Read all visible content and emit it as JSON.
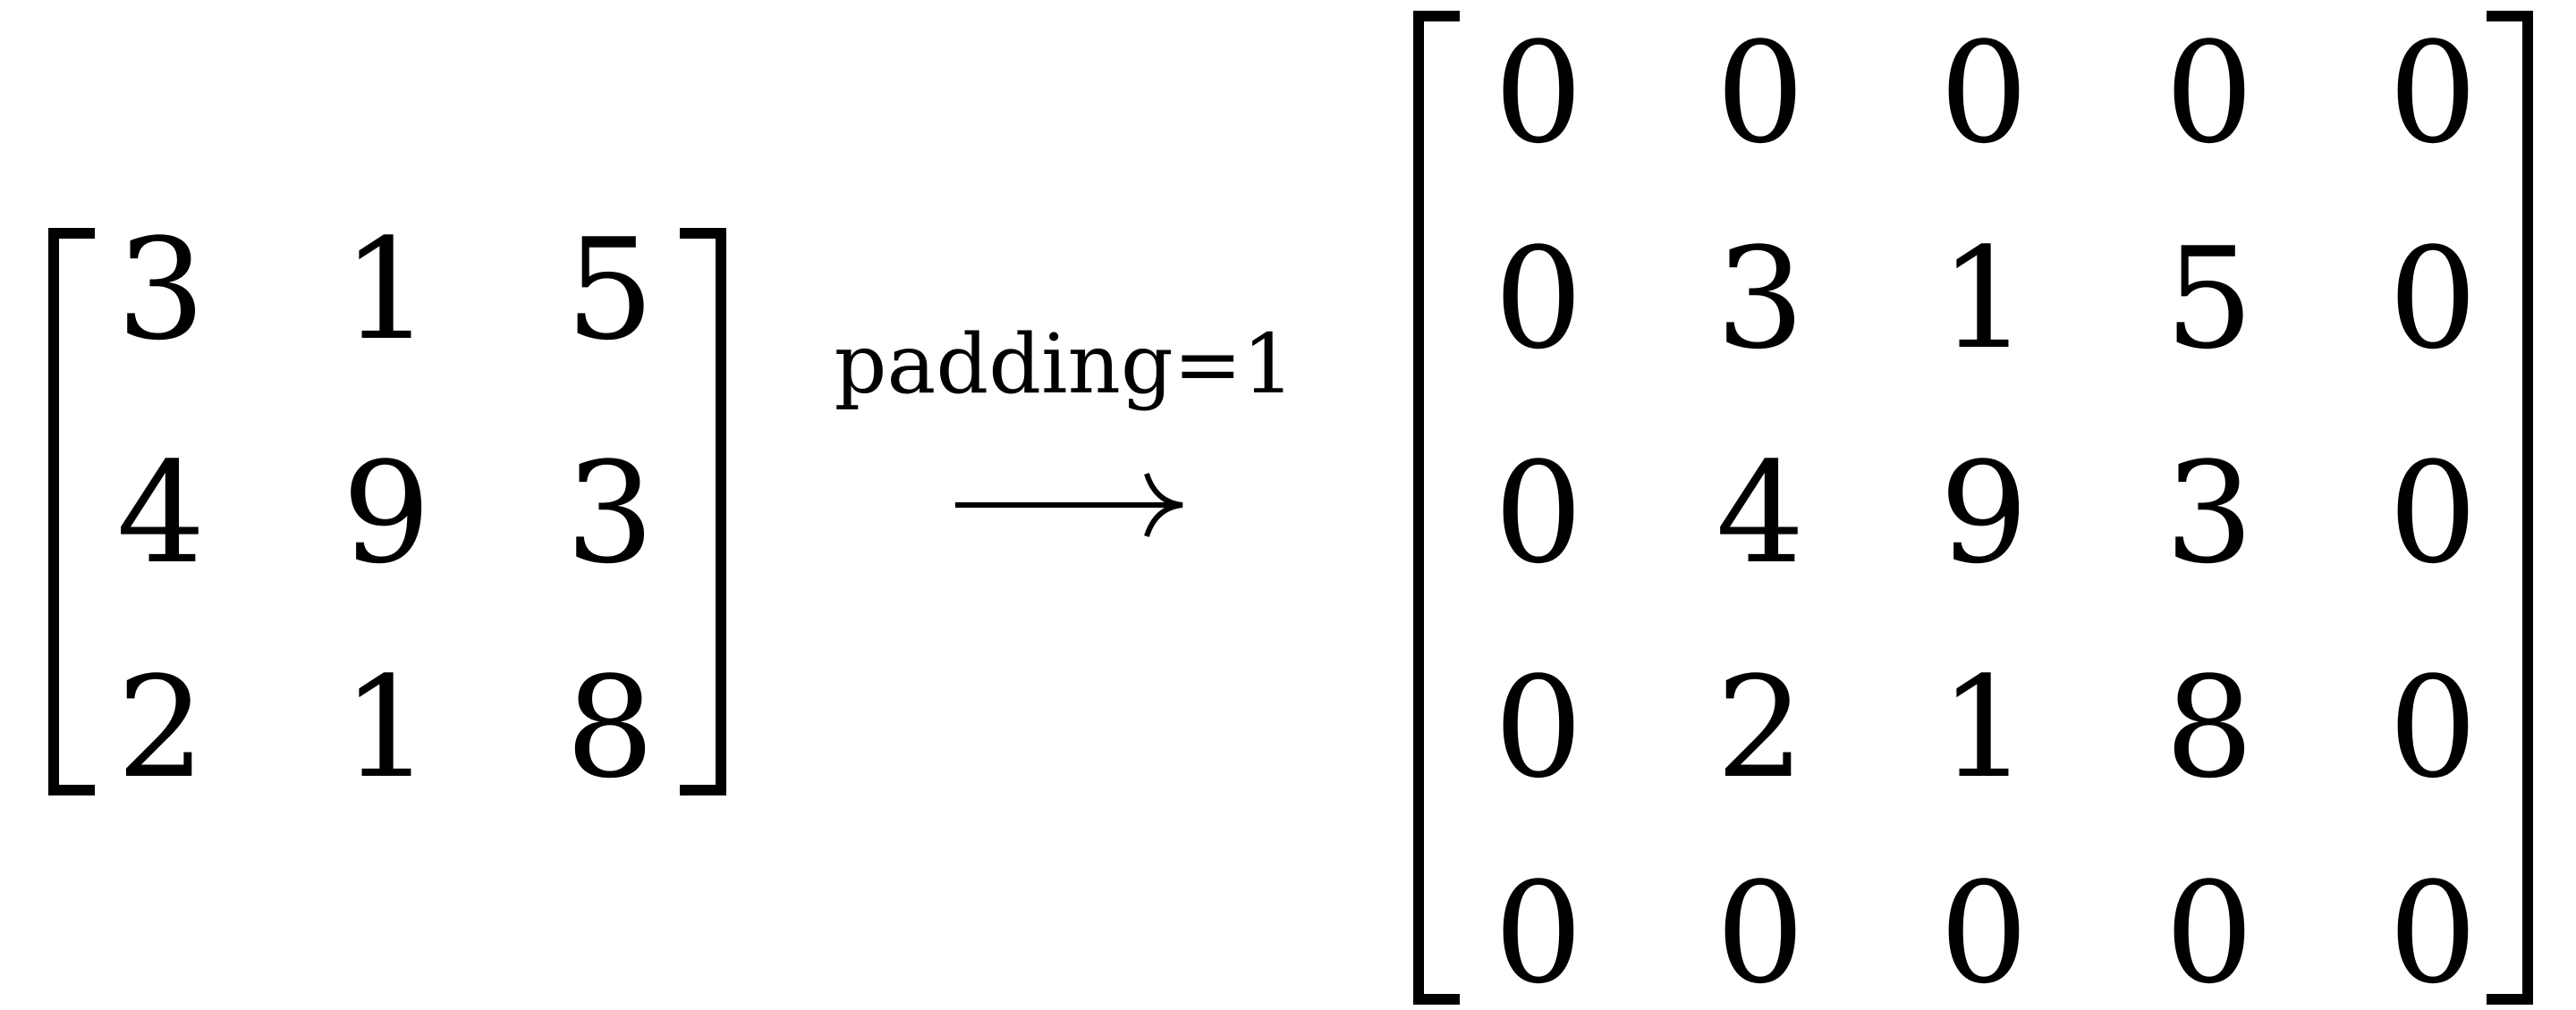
{
  "source_matrix": {
    "rows": [
      [
        "3",
        "1",
        "5"
      ],
      [
        "4",
        "9",
        "3"
      ],
      [
        "2",
        "1",
        "8"
      ]
    ]
  },
  "operation": {
    "label": "padding=1"
  },
  "padded_matrix": {
    "rows": [
      [
        "0",
        "0",
        "0",
        "0",
        "0"
      ],
      [
        "0",
        "3",
        "1",
        "5",
        "0"
      ],
      [
        "0",
        "4",
        "9",
        "3",
        "0"
      ],
      [
        "0",
        "2",
        "1",
        "8",
        "0"
      ],
      [
        "0",
        "0",
        "0",
        "0",
        "0"
      ]
    ]
  }
}
